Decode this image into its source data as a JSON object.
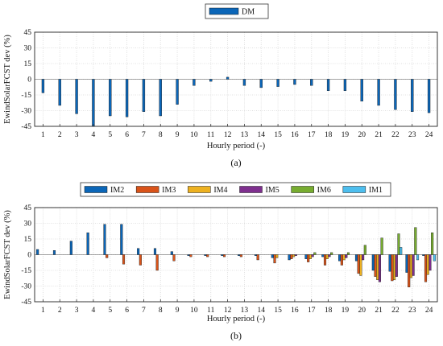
{
  "chart_data": [
    {
      "type": "bar",
      "panel_label": "(a)",
      "xlabel": "Hourly period (-)",
      "ylabel": "EwindSolarFCST dev (%)",
      "ylim": [
        -45,
        45
      ],
      "yticks": [
        -45,
        -30,
        -15,
        0,
        15,
        30,
        45
      ],
      "grid": true,
      "legend_position": "top-center",
      "categories": [
        "1",
        "2",
        "3",
        "4",
        "5",
        "6",
        "7",
        "8",
        "9",
        "10",
        "11",
        "12",
        "13",
        "14",
        "15",
        "16",
        "17",
        "18",
        "19",
        "20",
        "21",
        "22",
        "23",
        "24"
      ],
      "series": [
        {
          "name": "DM",
          "color": "#0b66b8",
          "values": [
            -13,
            -25,
            -33,
            -45,
            -35,
            -36,
            -31,
            -35,
            -24,
            -6,
            -2,
            2,
            -6,
            -8,
            -7,
            -5,
            -6,
            -11,
            -11,
            -21,
            -25,
            -29,
            -31,
            -32
          ]
        }
      ]
    },
    {
      "type": "bar",
      "panel_label": "(b)",
      "xlabel": "Hourly period (-)",
      "ylabel": "EwindSolarFCST dev (%)",
      "ylim": [
        -45,
        45
      ],
      "yticks": [
        -45,
        -30,
        -15,
        0,
        15,
        30,
        45
      ],
      "grid": true,
      "legend_position": "top-center",
      "categories": [
        "1",
        "2",
        "3",
        "4",
        "5",
        "6",
        "7",
        "8",
        "9",
        "10",
        "11",
        "12",
        "13",
        "14",
        "15",
        "16",
        "17",
        "18",
        "19",
        "20",
        "21",
        "22",
        "23",
        "24"
      ],
      "series": [
        {
          "name": "IM2",
          "color": "#0b66b8",
          "values": [
            5,
            4,
            13,
            21,
            29,
            29,
            6,
            6,
            3,
            -1,
            -1,
            -1,
            -1,
            -1,
            -3,
            -5,
            -4,
            -2,
            -6,
            -6,
            -15,
            -16,
            -17,
            -1
          ]
        },
        {
          "name": "IM3",
          "color": "#d95319",
          "values": [
            null,
            null,
            null,
            null,
            -3,
            -9,
            -10,
            -15,
            -6,
            -2,
            -2,
            -2,
            -2,
            -5,
            -8,
            -4,
            -7,
            -10,
            -10,
            -18,
            -21,
            -25,
            -31,
            -26
          ]
        },
        {
          "name": "IM4",
          "color": "#edb120",
          "values": [
            null,
            null,
            null,
            null,
            null,
            null,
            null,
            null,
            null,
            null,
            null,
            null,
            null,
            null,
            -3,
            -2,
            -4,
            -4,
            -5,
            -20,
            -24,
            -24,
            -22,
            -19
          ]
        },
        {
          "name": "IM5",
          "color": "#7e2f8e",
          "values": [
            null,
            null,
            null,
            null,
            null,
            null,
            null,
            null,
            null,
            null,
            null,
            null,
            null,
            null,
            null,
            -1,
            -2,
            -2,
            -3,
            -5,
            -26,
            -21,
            -20,
            -15
          ]
        },
        {
          "name": "IM6",
          "color": "#77ac30",
          "values": [
            null,
            null,
            null,
            null,
            null,
            null,
            null,
            null,
            null,
            null,
            null,
            null,
            null,
            null,
            null,
            null,
            2,
            2,
            2,
            9,
            16,
            20,
            26,
            21
          ]
        },
        {
          "name": "IM1",
          "color": "#4dbeee",
          "values": [
            null,
            null,
            null,
            null,
            null,
            null,
            null,
            null,
            null,
            null,
            null,
            null,
            null,
            null,
            null,
            null,
            null,
            null,
            null,
            null,
            null,
            7,
            -5,
            -6
          ]
        }
      ]
    }
  ]
}
